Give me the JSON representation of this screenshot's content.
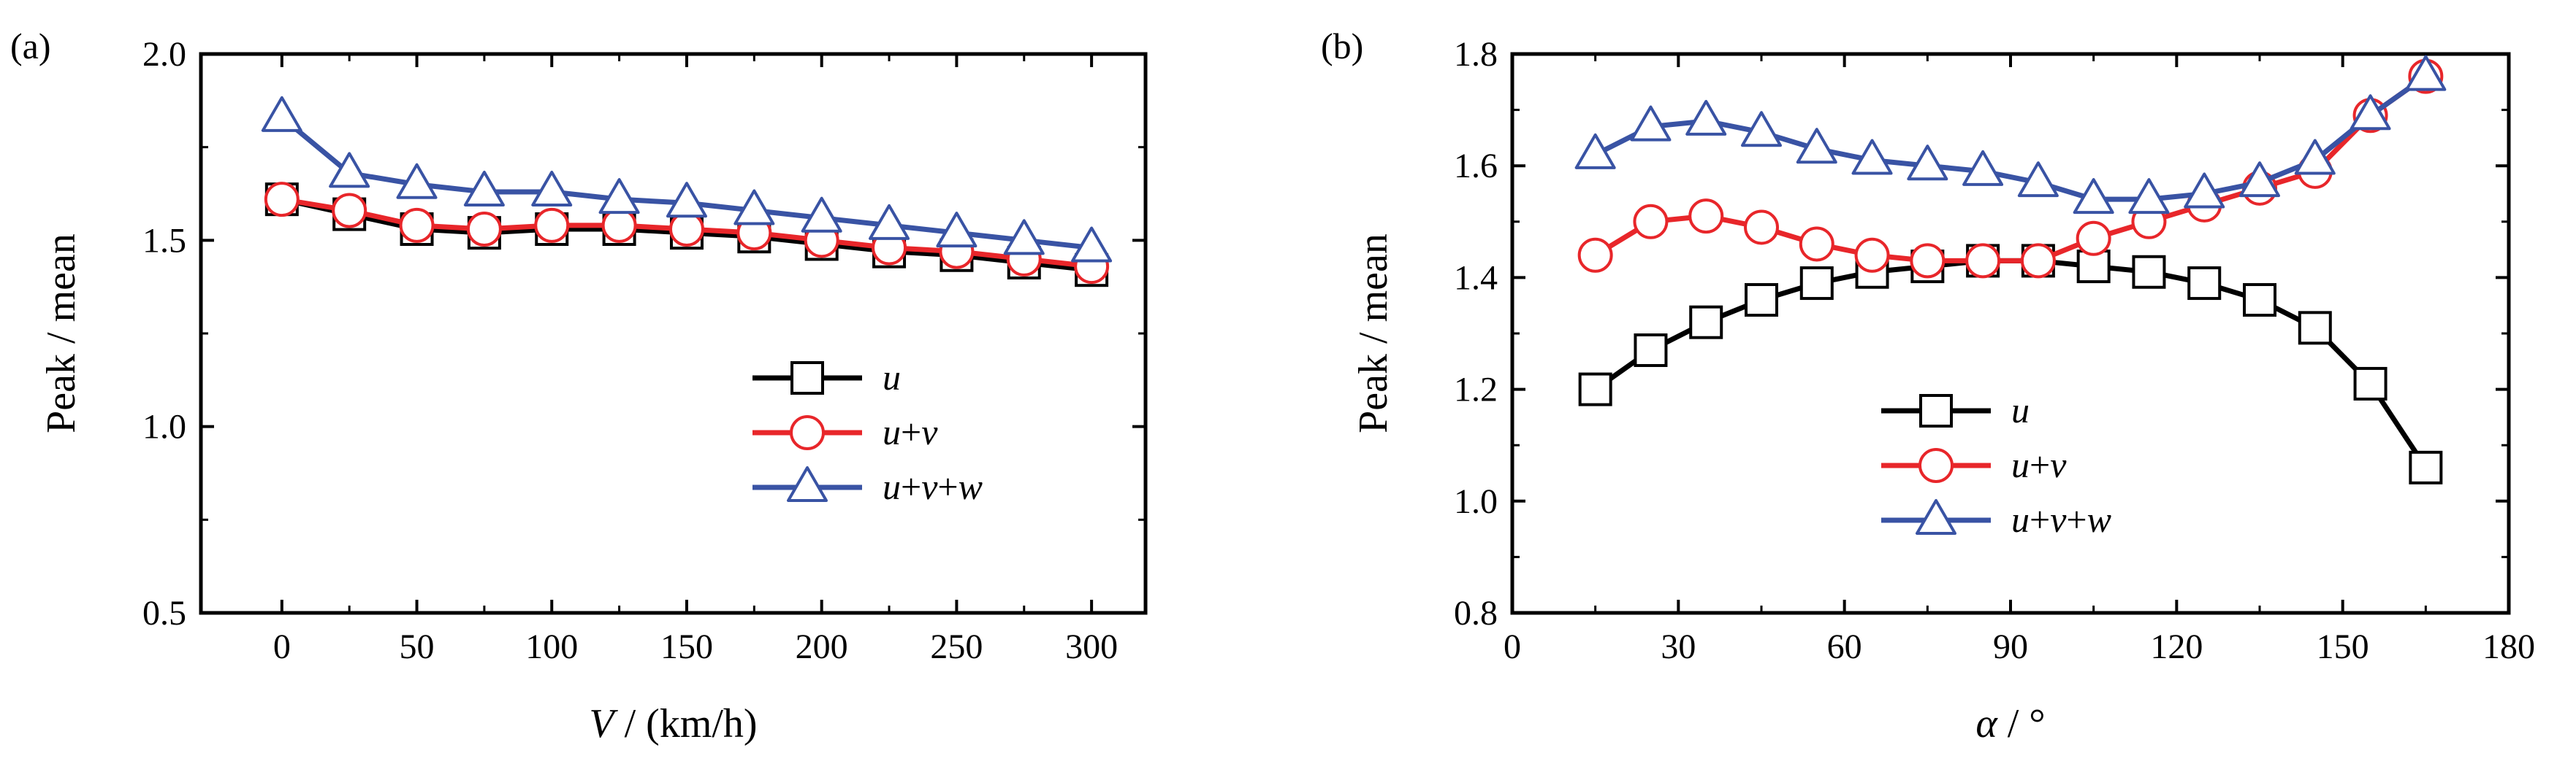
{
  "chart_data": [
    {
      "panel_label": "(a)",
      "type": "line",
      "xlabel_var": "V",
      "xlabel_unit": " / (km/h)",
      "ylabel": "Peak / mean",
      "xlim": [
        -30,
        320
      ],
      "ylim": [
        0.5,
        2.0
      ],
      "xticks": [
        0,
        50,
        100,
        150,
        200,
        250,
        300
      ],
      "yticks": [
        0.5,
        1.0,
        1.5,
        2.0
      ],
      "ytick_labels": [
        "0.5",
        "1.0",
        "1.5",
        "2.0"
      ],
      "x": [
        0,
        25,
        50,
        75,
        100,
        125,
        150,
        175,
        200,
        225,
        250,
        275,
        300
      ],
      "series": [
        {
          "name": "u",
          "label_parts": [
            "u"
          ],
          "color": "#000000",
          "marker": "square",
          "values": [
            1.61,
            1.57,
            1.53,
            1.52,
            1.53,
            1.53,
            1.52,
            1.51,
            1.49,
            1.47,
            1.46,
            1.44,
            1.42
          ]
        },
        {
          "name": "u+v",
          "label_parts": [
            "u",
            "+",
            "v"
          ],
          "color": "#e8262a",
          "marker": "circle",
          "values": [
            1.61,
            1.58,
            1.54,
            1.53,
            1.54,
            1.54,
            1.53,
            1.52,
            1.5,
            1.48,
            1.47,
            1.45,
            1.43
          ]
        },
        {
          "name": "u+v+w",
          "label_parts": [
            "u",
            "+",
            "v",
            "+",
            "w"
          ],
          "color": "#3953a4",
          "marker": "triangle",
          "values": [
            1.83,
            1.68,
            1.65,
            1.63,
            1.63,
            1.61,
            1.6,
            1.58,
            1.56,
            1.54,
            1.52,
            1.5,
            1.48
          ]
        }
      ],
      "legend_position": "center-right"
    },
    {
      "panel_label": "(b)",
      "type": "line",
      "xlabel_var": "α",
      "xlabel_unit": " / °",
      "ylabel": "Peak / mean",
      "xlim": [
        0,
        180
      ],
      "ylim": [
        0.8,
        1.8
      ],
      "xticks": [
        0,
        30,
        60,
        90,
        120,
        150,
        180
      ],
      "yticks": [
        0.8,
        1.0,
        1.2,
        1.4,
        1.6,
        1.8
      ],
      "ytick_labels": [
        "0.8",
        "1.0",
        "1.2",
        "1.4",
        "1.6",
        "1.8"
      ],
      "x": [
        15,
        25,
        35,
        45,
        55,
        65,
        75,
        85,
        95,
        105,
        115,
        125,
        135,
        145,
        155,
        165
      ],
      "series": [
        {
          "name": "u",
          "label_parts": [
            "u"
          ],
          "color": "#000000",
          "marker": "square",
          "values": [
            1.2,
            1.27,
            1.32,
            1.36,
            1.39,
            1.41,
            1.42,
            1.43,
            1.43,
            1.42,
            1.41,
            1.39,
            1.36,
            1.31,
            1.21,
            1.06
          ]
        },
        {
          "name": "u+v",
          "label_parts": [
            "u",
            "+",
            "v"
          ],
          "color": "#e8262a",
          "marker": "circle",
          "values": [
            1.44,
            1.5,
            1.51,
            1.49,
            1.46,
            1.44,
            1.43,
            1.43,
            1.43,
            1.47,
            1.5,
            1.53,
            1.56,
            1.59,
            1.69,
            1.76
          ]
        },
        {
          "name": "u+v+w",
          "label_parts": [
            "u",
            "+",
            "v",
            "+",
            "w"
          ],
          "color": "#3953a4",
          "marker": "triangle",
          "values": [
            1.62,
            1.67,
            1.68,
            1.66,
            1.63,
            1.61,
            1.6,
            1.59,
            1.57,
            1.54,
            1.54,
            1.55,
            1.57,
            1.61,
            1.69,
            1.76
          ]
        }
      ],
      "legend_position": "bottom-center"
    }
  ]
}
